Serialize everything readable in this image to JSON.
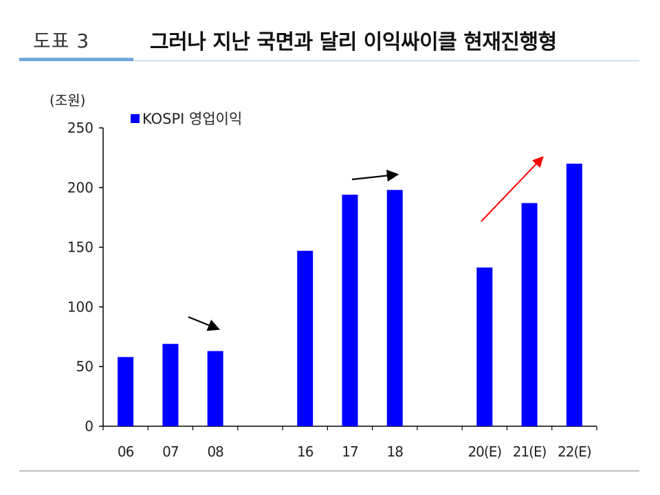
{
  "header": {
    "figure_label": "도표 3",
    "title": "그러나 지난 국면과 달리 이익싸이클 현재진행형"
  },
  "chart_data": {
    "type": "bar",
    "unit_label": "(조원)",
    "categories": [
      "06",
      "07",
      "08",
      "16",
      "17",
      "18",
      "20(E)",
      "21(E)",
      "22(E)"
    ],
    "series": [
      {
        "name": "KOSPI 영업이익",
        "color": "#0000ff",
        "values": [
          58,
          69,
          63,
          147,
          194,
          198,
          133,
          187,
          220
        ]
      }
    ],
    "ylim": [
      0,
      250
    ],
    "yticks": [
      "0",
      "50",
      "100",
      "150",
      "200",
      "250"
    ],
    "ytick_values": [
      0,
      50,
      100,
      150,
      200,
      250
    ],
    "grid": false,
    "legend_position": "top-left",
    "groups": [
      [
        "06",
        "07",
        "08"
      ],
      [
        "16",
        "17",
        "18"
      ],
      [
        "20(E)",
        "21(E)",
        "22(E)"
      ]
    ],
    "annotations": [
      {
        "type": "arrow",
        "direction": "down-right",
        "color": "#000000",
        "group": 1
      },
      {
        "type": "arrow",
        "direction": "right",
        "color": "#000000",
        "group": 2
      },
      {
        "type": "arrow",
        "direction": "up-right",
        "color": "#ff0000",
        "group": 3
      }
    ]
  }
}
